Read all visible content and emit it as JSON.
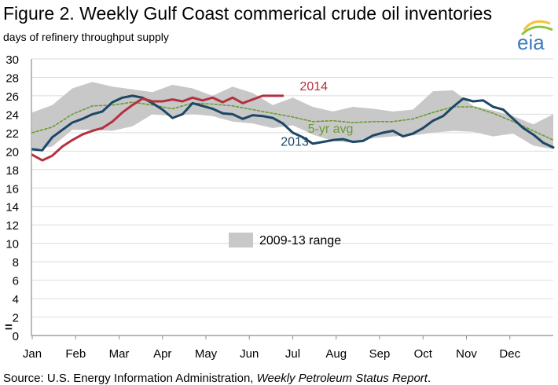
{
  "chart_data": {
    "type": "line",
    "title": "Figure 2. Weekly Gulf Coast commerical crude oil inventories",
    "ylabel": "days of refinery throughput supply",
    "ylim": [
      0,
      30
    ],
    "yticks": [
      "0",
      "2",
      "4",
      "6",
      "8",
      "10",
      "12",
      "14",
      "16",
      "18",
      "20",
      "22",
      "24",
      "26",
      "28",
      "30"
    ],
    "y_break_mark": "=",
    "months": [
      "Jan",
      "Feb",
      "Mar",
      "Apr",
      "May",
      "Jun",
      "Jul",
      "Aug",
      "Sep",
      "Oct",
      "Nov",
      "Dec"
    ],
    "xlim": [
      0,
      52
    ],
    "grid": "horizontal",
    "legend": {
      "position": "center",
      "label": "2009-13 range"
    },
    "series": [
      {
        "name": "2014",
        "color": "#b5303f",
        "x": [
          0,
          1,
          2,
          3,
          4,
          5,
          6,
          7,
          8,
          9,
          10,
          11,
          12,
          13,
          14,
          15,
          16,
          17,
          18,
          19,
          20,
          21,
          22,
          23,
          24,
          25
        ],
        "y": [
          19.6,
          19.0,
          19.5,
          20.5,
          21.2,
          21.8,
          22.2,
          22.5,
          23.2,
          24.2,
          25.0,
          25.7,
          25.4,
          25.4,
          25.6,
          25.4,
          25.8,
          25.5,
          25.8,
          25.3,
          25.8,
          25.2,
          25.6,
          26.0,
          26.0,
          26.0
        ]
      },
      {
        "name": "2013",
        "color": "#1c4766",
        "x": [
          0,
          1,
          2,
          3,
          4,
          5,
          6,
          7,
          8,
          9,
          10,
          11,
          12,
          13,
          14,
          15,
          16,
          17,
          18,
          19,
          20,
          21,
          22,
          23,
          24,
          25,
          26,
          27,
          28,
          29,
          30,
          31,
          32,
          33,
          34,
          35,
          36,
          37,
          38,
          39,
          40,
          41,
          42,
          43,
          44,
          45,
          46,
          47,
          48,
          49,
          50,
          51,
          52
        ],
        "y": [
          20.2,
          20.1,
          21.5,
          22.3,
          23.1,
          23.5,
          24.0,
          24.3,
          25.3,
          25.8,
          26.0,
          25.8,
          25.2,
          24.5,
          23.6,
          24.0,
          25.2,
          24.9,
          24.6,
          24.1,
          24.0,
          23.5,
          23.9,
          23.8,
          23.6,
          23.0,
          22.0,
          21.5,
          20.8,
          21.0,
          21.2,
          21.3,
          21.0,
          21.1,
          21.7,
          22.0,
          22.2,
          21.6,
          21.9,
          22.5,
          23.3,
          23.8,
          24.8,
          25.7,
          25.4,
          25.5,
          24.8,
          24.5,
          23.5,
          22.5,
          21.8,
          20.9,
          20.4
        ]
      },
      {
        "name": "5-yr avg",
        "color": "#6a9b35",
        "x": [
          0,
          2,
          4,
          6,
          8,
          10,
          12,
          14,
          16,
          18,
          20,
          22,
          24,
          26,
          28,
          30,
          32,
          34,
          36,
          38,
          40,
          42,
          44,
          46,
          48,
          50,
          52
        ],
        "y": [
          22.0,
          22.6,
          24.0,
          24.9,
          25.0,
          25.3,
          25.0,
          24.6,
          25.2,
          25.1,
          24.9,
          24.5,
          24.1,
          23.7,
          23.2,
          23.3,
          23.1,
          23.2,
          23.2,
          23.5,
          24.2,
          24.8,
          24.8,
          24.1,
          23.2,
          22.2,
          21.2
        ]
      }
    ],
    "range_band": {
      "name": "2009-13 range",
      "color": "#c8c8c8",
      "x": [
        0,
        2,
        4,
        6,
        8,
        10,
        12,
        14,
        16,
        18,
        20,
        22,
        24,
        26,
        28,
        30,
        32,
        34,
        36,
        38,
        40,
        42,
        44,
        46,
        48,
        50,
        52
      ],
      "upper": [
        24.2,
        25.0,
        26.8,
        27.5,
        27.0,
        26.7,
        26.4,
        27.2,
        26.8,
        26.0,
        27.0,
        26.3,
        25.0,
        25.8,
        24.8,
        24.3,
        24.8,
        24.6,
        24.3,
        24.5,
        26.5,
        26.6,
        24.9,
        24.4,
        23.8,
        22.9,
        24.0
      ],
      "lower": [
        20.2,
        20.5,
        22.3,
        22.3,
        22.2,
        22.7,
        24.0,
        23.8,
        24.0,
        23.8,
        23.2,
        23.0,
        22.5,
        22.8,
        21.8,
        21.1,
        20.9,
        21.4,
        21.6,
        21.7,
        22.0,
        22.2,
        22.1,
        21.6,
        21.9,
        20.6,
        20.2
      ]
    },
    "annotations": [
      {
        "text": "2014",
        "x": 26.7,
        "y": 26.6,
        "color": "#b5303f"
      },
      {
        "text": "2013",
        "x": 24.8,
        "y": 20.6,
        "color": "#1c4766"
      },
      {
        "text": "5-yr avg",
        "x": 27.5,
        "y": 22.0,
        "color": "#6a9b35"
      }
    ],
    "source": {
      "prefix": "Source: U.S. Energy Information Administration, ",
      "italic": "Weekly Petroleum Status Report",
      "suffix": "."
    },
    "logo_text": "eia"
  },
  "colors": {
    "logo_blue": "#3b7bbf",
    "logo_green": "#8dc63f",
    "logo_yellow": "#f7c23a",
    "grid": "#dcdcdc",
    "axis": "#8c8c8c"
  }
}
